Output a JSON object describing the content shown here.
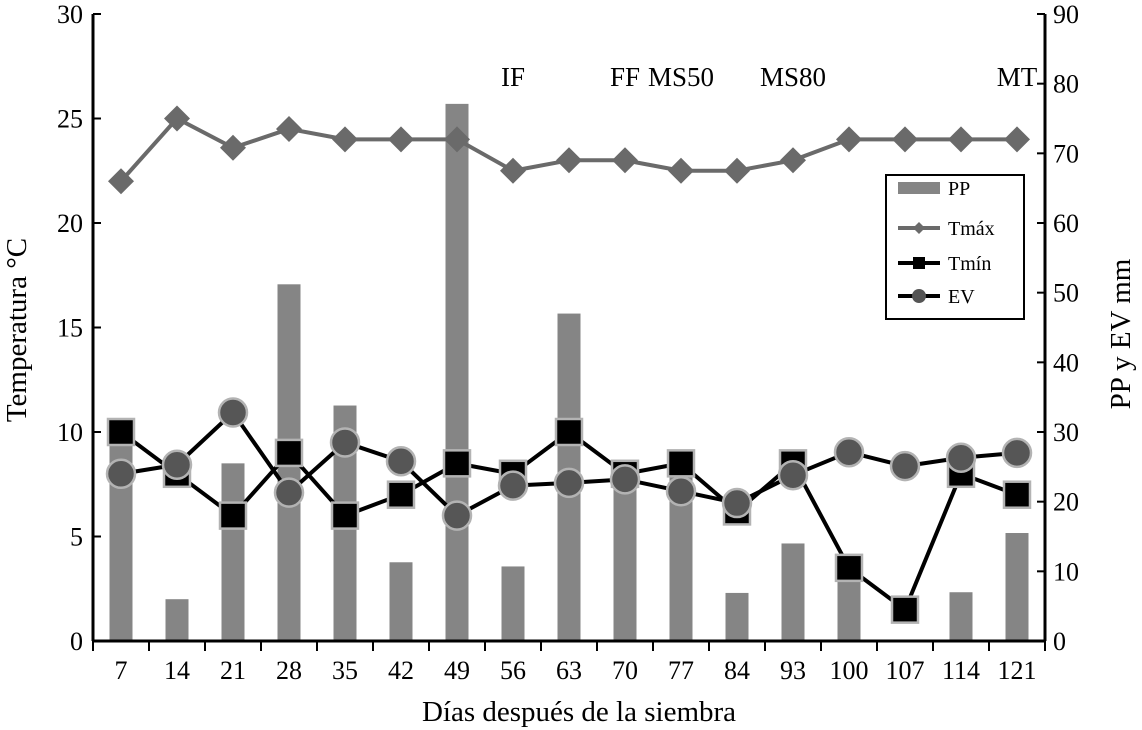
{
  "chart_data": {
    "type": "bar+line",
    "xlabel": "Días después de la siembra",
    "ylabel_left": "Temperatura °C",
    "ylabel_right": "PP y EV mm",
    "ylim_left": [
      0,
      30
    ],
    "ylim_right": [
      0,
      90
    ],
    "yticks_left": [
      0,
      5,
      10,
      15,
      20,
      25,
      30
    ],
    "yticks_right": [
      0,
      10,
      20,
      30,
      40,
      50,
      60,
      70,
      80,
      90
    ],
    "categories": [
      "7",
      "14",
      "21",
      "28",
      "35",
      "42",
      "49",
      "56",
      "63",
      "70",
      "77",
      "84",
      "93",
      "100",
      "107",
      "114",
      "121"
    ],
    "series": [
      {
        "name": "PP",
        "type": "bar",
        "axis": "right",
        "color": "#858585",
        "values": [
          32,
          6,
          25.5,
          51.2,
          33.8,
          11.3,
          77.1,
          10.7,
          47,
          25,
          25,
          6.9,
          14,
          10.2,
          0,
          7,
          15.5
        ]
      },
      {
        "name": "Tmáx",
        "type": "line",
        "axis": "left",
        "color": "#6a6a6a",
        "marker": "diamond",
        "values": [
          22,
          25,
          23.6,
          24.5,
          24,
          24,
          24,
          22.5,
          23,
          23,
          22.5,
          22.5,
          23,
          24,
          24,
          24,
          24
        ]
      },
      {
        "name": "Tmín",
        "type": "line",
        "axis": "left",
        "color": "#000000",
        "marker": "square",
        "values": [
          10,
          8,
          6,
          9,
          6,
          7,
          8.5,
          8,
          10,
          8,
          8.5,
          6.2,
          8.5,
          3.5,
          1.5,
          8,
          7
        ]
      },
      {
        "name": "EV",
        "type": "line",
        "axis": "right",
        "color": "#000000",
        "marker": "circle",
        "values": [
          24,
          25.3,
          32.8,
          21.3,
          28.5,
          25.8,
          18,
          22.3,
          22.7,
          23.2,
          21.5,
          19.8,
          23.8,
          27.1,
          25.1,
          26.3,
          27
        ]
      }
    ],
    "stage_labels": [
      {
        "text": "IF",
        "at": "56"
      },
      {
        "text": "FF",
        "at": "70"
      },
      {
        "text": "MS50",
        "at": "77"
      },
      {
        "text": "MS80",
        "at": "93"
      },
      {
        "text": "MT",
        "at": "121"
      }
    ],
    "legend": [
      "PP",
      "Tmáx",
      "Tmín",
      "EV"
    ],
    "legend_position": "right"
  }
}
